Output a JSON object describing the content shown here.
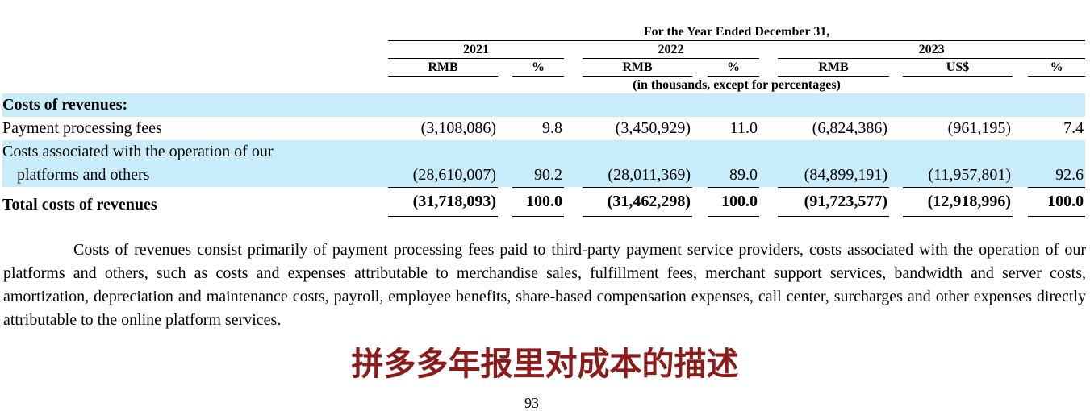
{
  "table": {
    "period_header": "For the Year Ended December 31,",
    "years": [
      "2021",
      "2022",
      "2023"
    ],
    "units": [
      "RMB",
      "%",
      "RMB",
      "%",
      "RMB",
      "US$",
      "%"
    ],
    "note": "(in thousands, except for percentages)",
    "section_label": "Costs of revenues:",
    "rows": [
      {
        "label": "Payment processing fees",
        "values": [
          "(3,108,086)",
          "9.8",
          "(3,450,929)",
          "11.0",
          "(6,824,386)",
          "(961,195)",
          "7.4"
        ]
      },
      {
        "label_line1": "Costs associated with the operation of our",
        "label_line2": "platforms and others",
        "values": [
          "(28,610,007)",
          "90.2",
          "(28,011,369)",
          "89.0",
          "(84,899,191)",
          "(11,957,801)",
          "92.6"
        ]
      }
    ],
    "total": {
      "label": "Total costs of revenues",
      "values": [
        "(31,718,093)",
        "100.0",
        "(31,462,298)",
        "100.0",
        "(91,723,577)",
        "(12,918,996)",
        "100.0"
      ]
    }
  },
  "paragraph": "Costs of revenues consist primarily of payment processing fees paid to third-party payment service providers, costs associated with the operation of our platforms and others, such as costs and expenses attributable to merchandise sales, fulfillment fees, merchant support services, bandwidth and server costs, amortization, depreciation and maintenance costs, payroll, employee benefits, share-based compensation expenses, call center, surcharges and other expenses directly attributable to the online platform services.",
  "caption": "拼多多年报里对成本的描述",
  "page_number": "93",
  "colors": {
    "row_highlight": "#c9ecfb",
    "caption": "#8b1a1a"
  }
}
